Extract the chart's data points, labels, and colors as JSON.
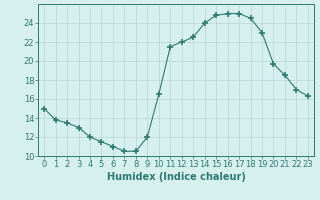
{
  "x": [
    0,
    1,
    2,
    3,
    4,
    5,
    6,
    7,
    8,
    9,
    10,
    11,
    12,
    13,
    14,
    15,
    16,
    17,
    18,
    19,
    20,
    21,
    22,
    23
  ],
  "y": [
    15,
    13.8,
    13.5,
    13,
    12,
    11.5,
    11,
    10.5,
    10.5,
    12,
    16.5,
    21.5,
    22,
    22.5,
    24,
    24.8,
    25,
    25,
    24.5,
    23,
    19.7,
    18.5,
    17,
    16.3
  ],
  "line_color": "#2d7a6e",
  "marker": "+",
  "marker_size": 4,
  "bg_color": "#d6f0f0",
  "grid_color": "#b8d4d4",
  "xlabel": "Humidex (Indice chaleur)",
  "xlim": [
    -0.5,
    23.5
  ],
  "ylim": [
    10,
    26
  ],
  "yticks": [
    10,
    12,
    14,
    16,
    18,
    20,
    22,
    24
  ],
  "xticks": [
    0,
    1,
    2,
    3,
    4,
    5,
    6,
    7,
    8,
    9,
    10,
    11,
    12,
    13,
    14,
    15,
    16,
    17,
    18,
    19,
    20,
    21,
    22,
    23
  ],
  "tick_color": "#2d7a6e",
  "label_fontsize": 6,
  "xlabel_fontsize": 7
}
